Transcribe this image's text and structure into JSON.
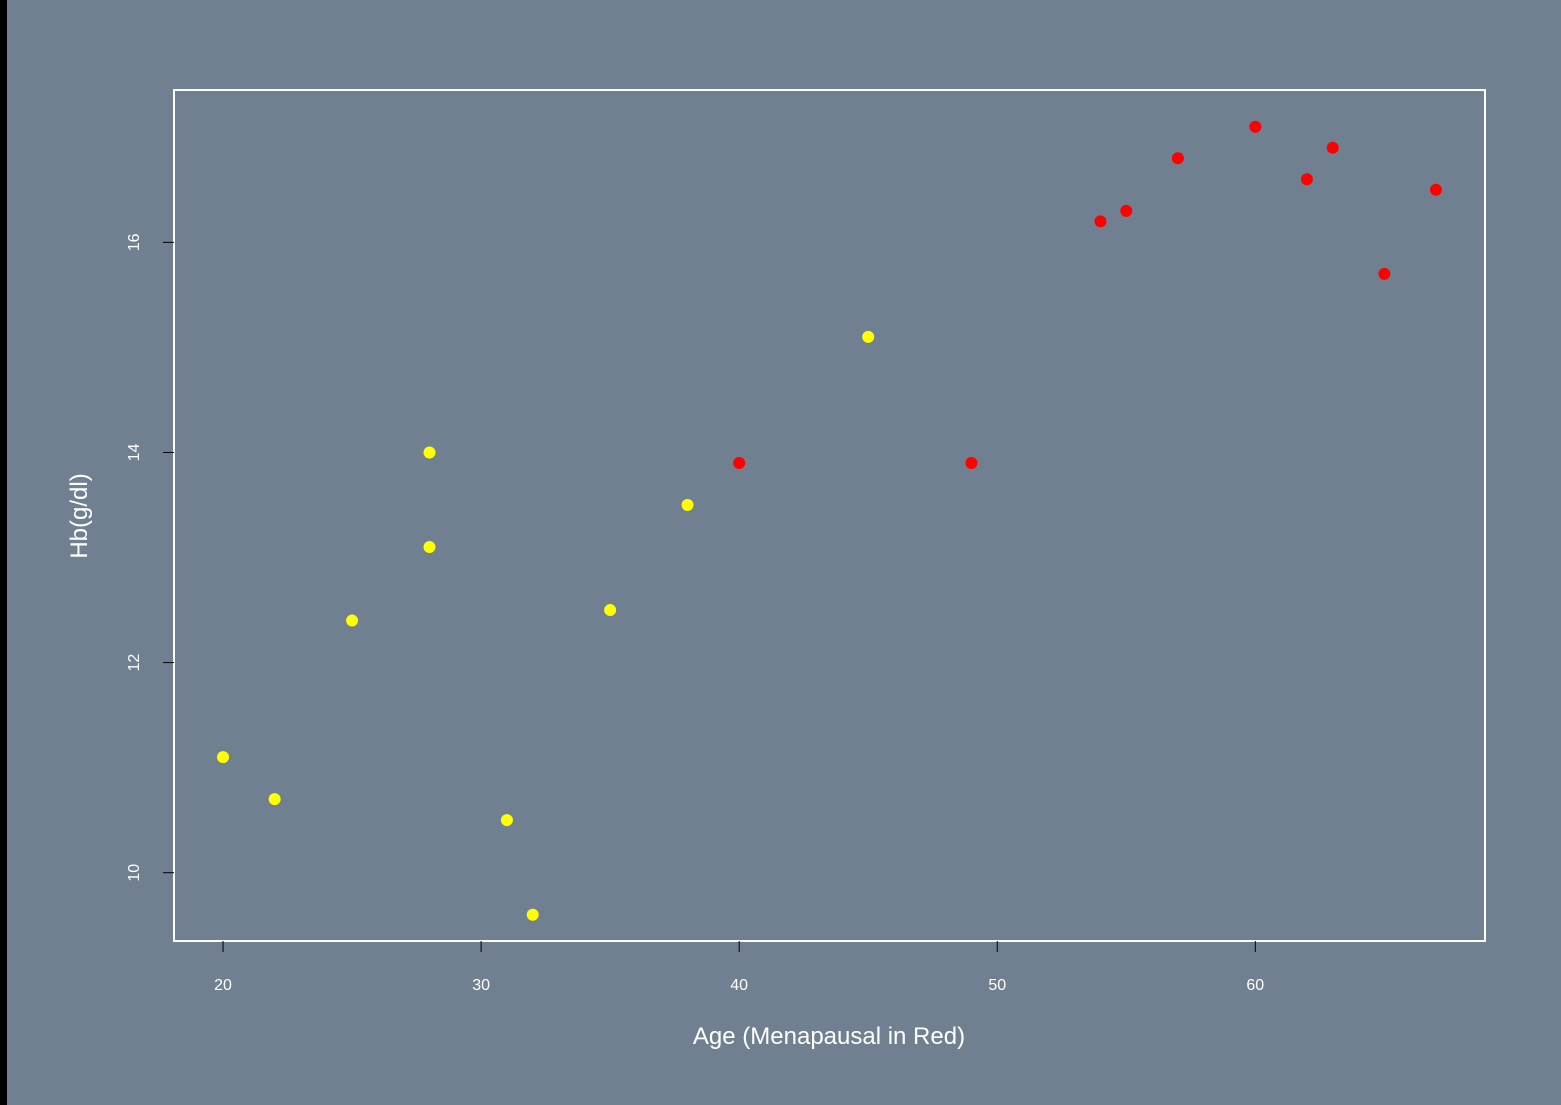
{
  "colors": {
    "background": "#708090",
    "outer_border": "#000000",
    "plot_box": "#ffffff",
    "axis_text": "#ffffff",
    "premenopausal_point": "#ffff00",
    "menopausal_point": "#ff0000"
  },
  "chart_data": {
    "type": "scatter",
    "title": "",
    "xlabel": "Age (Menapausal in Red)",
    "ylabel": "Hb(g/dl)",
    "xlim": [
      18.1,
      68.9
    ],
    "ylim": [
      9.35,
      17.45
    ],
    "x_ticks": [
      20,
      30,
      40,
      50,
      60
    ],
    "y_ticks": [
      10,
      12,
      14,
      16
    ],
    "grid": false,
    "legend": "none",
    "series": [
      {
        "color": "#ffff00",
        "x": [
          20,
          22,
          25,
          28,
          28,
          31,
          32,
          35,
          38,
          45
        ],
        "y": [
          11.1,
          10.7,
          12.4,
          14.0,
          13.1,
          10.5,
          9.6,
          12.5,
          13.5,
          15.1
        ]
      },
      {
        "color": "#ff0000",
        "x": [
          40,
          49,
          54,
          55,
          57,
          60,
          62,
          63,
          65,
          67
        ],
        "y": [
          13.9,
          13.9,
          16.2,
          16.3,
          16.8,
          17.1,
          16.6,
          16.9,
          15.7,
          16.5
        ]
      }
    ]
  }
}
